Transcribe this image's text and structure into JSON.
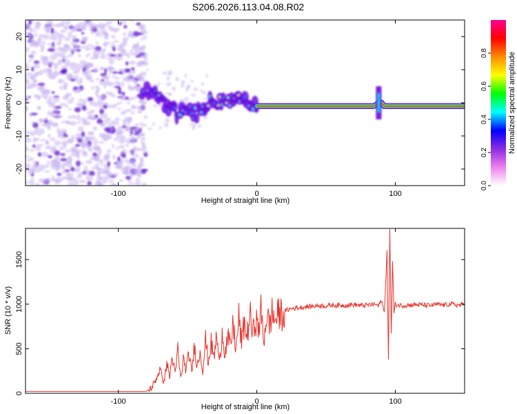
{
  "title": "S206.2026.113.04.08.R02",
  "colors": {
    "snr_line": "#e8322a",
    "frame": "#000000",
    "noise_speckle": "#c8b4f0",
    "noise_dark": "#6a1fd0"
  },
  "chart_data": [
    {
      "type": "heatmap",
      "name": "spectrogram",
      "xlabel": "Height of straight line (km)",
      "ylabel": "Frequency (Hz)",
      "xlim": [
        -167,
        150
      ],
      "ylim": [
        -25,
        25
      ],
      "x_ticks": [
        -100,
        0,
        100
      ],
      "y_ticks": [
        -20,
        -10,
        0,
        10,
        20
      ],
      "colorbar": {
        "label": "Normalized spectral amplitude",
        "range": [
          0,
          1
        ],
        "ticks": [
          "0.0",
          "0.2",
          "0.4",
          "0.6",
          "0.8"
        ],
        "tick_values": [
          0.0,
          0.2,
          0.4,
          0.6,
          0.8
        ],
        "colormap": [
          "#ffffff",
          "#ee82ee",
          "#8a2be2",
          "#0000ff",
          "#00ffff",
          "#00ff00",
          "#ffff00",
          "#ff8c00",
          "#ff0000",
          "#ff0090"
        ]
      },
      "segments": {
        "noise_region": [
          -167,
          -83
        ],
        "tone_onset": -83,
        "signal_centre_hz": [
          [
            -83,
            3
          ],
          [
            -75,
            4
          ],
          [
            -70,
            1
          ],
          [
            -65,
            -2
          ],
          [
            -58,
            -3
          ],
          [
            -50,
            -2
          ],
          [
            -44,
            -3
          ],
          [
            -40,
            -2
          ],
          [
            -34,
            0
          ],
          [
            -28,
            0
          ],
          [
            -20,
            1
          ],
          [
            -15,
            1
          ],
          [
            -10,
            0
          ],
          [
            -5,
            1
          ],
          [
            0,
            -1
          ],
          [
            10,
            -1
          ],
          [
            30,
            -1
          ],
          [
            60,
            -1
          ],
          [
            85,
            -1
          ],
          [
            88,
            0
          ],
          [
            90,
            0
          ],
          [
            92,
            -1
          ],
          [
            150,
            -1
          ]
        ],
        "strong_tone_start": 0,
        "transient_at": 88
      }
    },
    {
      "type": "line",
      "name": "snr",
      "xlabel": "Height of straight line (km)",
      "ylabel": "SNR (10 * v/v)",
      "xlim": [
        -167,
        150
      ],
      "ylim": [
        0,
        1850
      ],
      "x_ticks": [
        -100,
        0,
        100
      ],
      "y_ticks": [
        0,
        500,
        1000,
        1500
      ],
      "series": [
        {
          "x": [
            -167,
            -140,
            -110,
            -90,
            -80,
            -76,
            -73,
            -70,
            -67,
            -65,
            -63,
            -61,
            -59,
            -57,
            -55,
            -53,
            -51,
            -49,
            -47,
            -45,
            -43,
            -41,
            -39,
            -37,
            -35,
            -33,
            -31,
            -29,
            -27,
            -25,
            -23,
            -21,
            -19,
            -17,
            -15,
            -13,
            -11,
            -9,
            -7,
            -5,
            -3,
            -1,
            1,
            3,
            5,
            7,
            9,
            11,
            13,
            15,
            17,
            19,
            21,
            25,
            30,
            35,
            40,
            45,
            50,
            55,
            60,
            65,
            70,
            75,
            80,
            85,
            88,
            90,
            92,
            94,
            95,
            96,
            97,
            98,
            99,
            100,
            102,
            105,
            110,
            115,
            120,
            125,
            130,
            135,
            140,
            145,
            150
          ],
          "y": [
            20,
            20,
            20,
            20,
            20,
            60,
            150,
            270,
            120,
            350,
            180,
            420,
            200,
            500,
            160,
            380,
            260,
            450,
            230,
            540,
            300,
            480,
            260,
            600,
            350,
            560,
            400,
            650,
            320,
            700,
            450,
            620,
            520,
            780,
            480,
            850,
            560,
            800,
            620,
            900,
            650,
            850,
            700,
            920,
            580,
            880,
            760,
            900,
            820,
            870,
            900,
            880,
            930,
            950,
            960,
            970,
            975,
            985,
            980,
            990,
            985,
            990,
            995,
            985,
            990,
            1000,
            980,
            1050,
            900,
            1600,
            350,
            1850,
            650,
            1480,
            900,
            1000,
            990,
            985,
            990,
            995,
            990,
            985,
            995,
            990,
            1000,
            990,
            995
          ]
        }
      ]
    }
  ]
}
